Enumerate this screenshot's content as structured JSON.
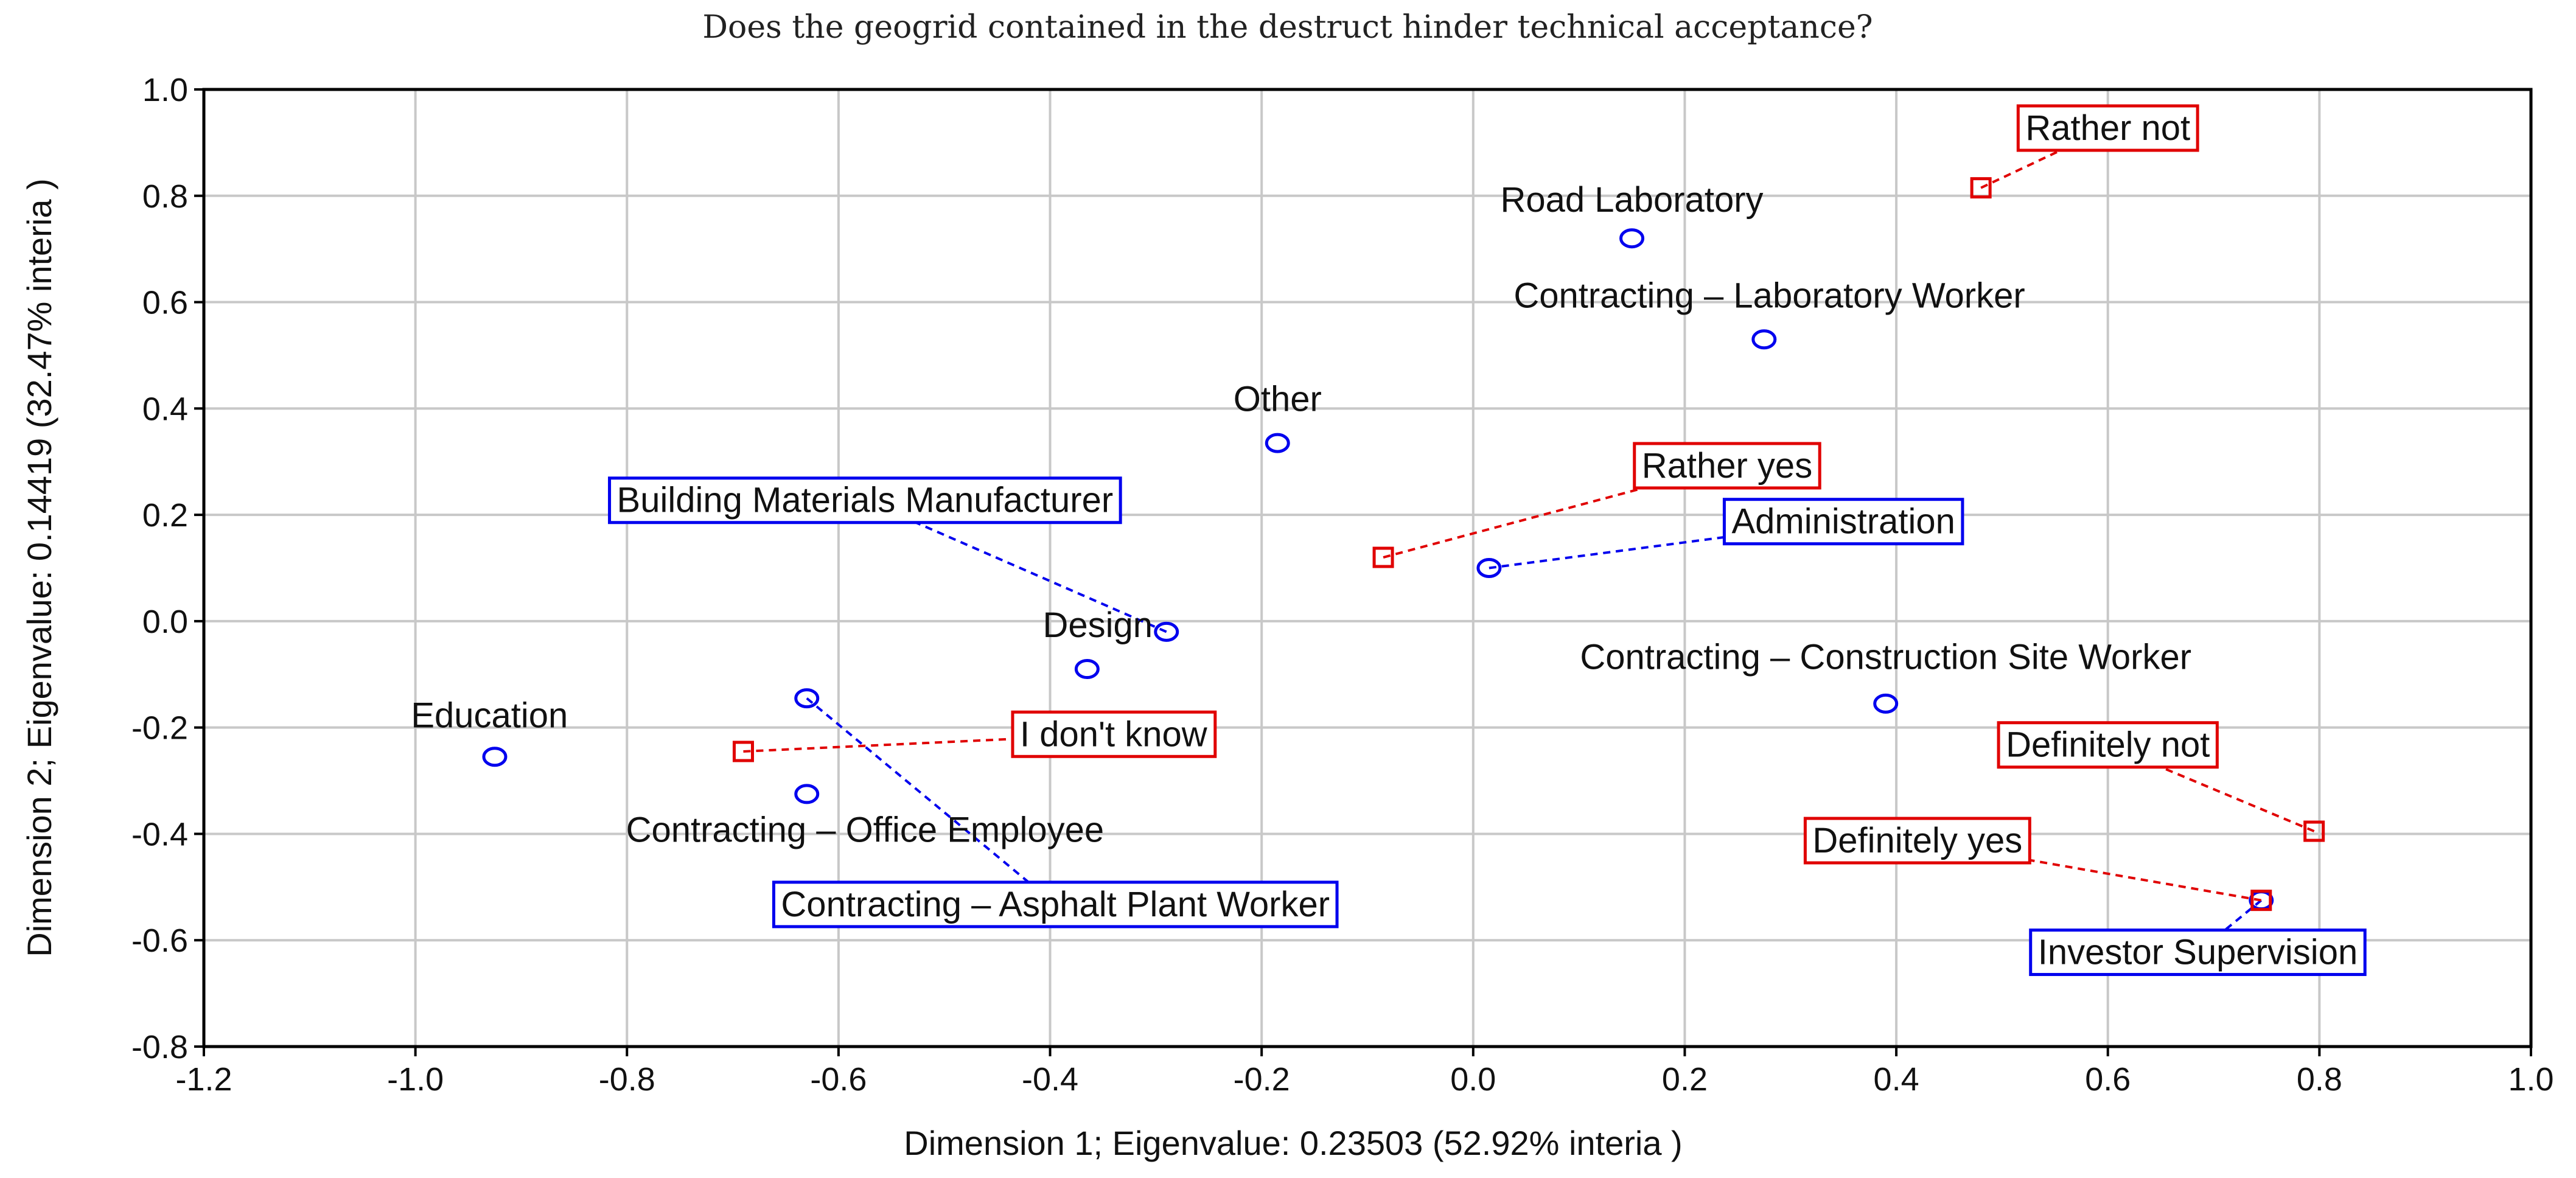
{
  "chart_data": {
    "type": "scatter",
    "title": "Does the geogrid contained in the destruct hinder technical acceptance?",
    "xlabel": "Dimension 1; Eigenvalue:  0.23503 (52.92% interia )",
    "ylabel": "Dimension 2; Eigenvalue:  0.14419 (32.47% interia )",
    "xlim": [
      -1.2,
      1.0
    ],
    "ylim": [
      -0.8,
      1.0
    ],
    "x_ticks": [
      "-1.2",
      "-1.0",
      "-0.8",
      "-0.6",
      "-0.4",
      "-0.2",
      "0.0",
      "0.2",
      "0.4",
      "0.6",
      "0.8",
      "1.0"
    ],
    "y_ticks": [
      "1.0",
      "0.8",
      "0.6",
      "0.4",
      "0.2",
      "0.0",
      "-0.2",
      "-0.4",
      "-0.6",
      "-0.8"
    ],
    "grid": true,
    "colors": {
      "respondent": "#0000ee",
      "answer": "#e00000"
    },
    "points": [
      {
        "label": "Road Laboratory",
        "x": 0.15,
        "y": 0.72,
        "group": "respondent",
        "boxed": false,
        "lx": 0.15,
        "ly": 0.77,
        "anchor": "middle"
      },
      {
        "label": "Contracting – Laboratory Worker",
        "x": 0.275,
        "y": 0.53,
        "group": "respondent",
        "boxed": false,
        "lx": 0.28,
        "ly": 0.59,
        "anchor": "middle"
      },
      {
        "label": "Other",
        "x": -0.185,
        "y": 0.335,
        "group": "respondent",
        "boxed": false,
        "lx": -0.185,
        "ly": 0.395,
        "anchor": "middle"
      },
      {
        "label": "Building Materials Manufacturer",
        "x": -0.29,
        "y": -0.02,
        "group": "respondent",
        "boxed": true,
        "lx": -0.575,
        "ly": 0.205,
        "anchor": "middle"
      },
      {
        "label": "Administration",
        "x": 0.015,
        "y": 0.1,
        "group": "respondent",
        "boxed": true,
        "lx": 0.35,
        "ly": 0.165,
        "anchor": "middle"
      },
      {
        "label": "Design",
        "x": -0.365,
        "y": -0.09,
        "group": "respondent",
        "boxed": false,
        "lx": -0.355,
        "ly": -0.03,
        "anchor": "middle"
      },
      {
        "label": "Contracting – Construction Site Worker",
        "x": 0.39,
        "y": -0.155,
        "group": "respondent",
        "boxed": false,
        "lx": 0.39,
        "ly": -0.09,
        "anchor": "middle"
      },
      {
        "label": "Education",
        "x": -0.925,
        "y": -0.255,
        "group": "respondent",
        "boxed": false,
        "lx": -0.93,
        "ly": -0.2,
        "anchor": "middle"
      },
      {
        "label": "Contracting – Office Employee",
        "x": -0.63,
        "y": -0.325,
        "group": "respondent",
        "boxed": false,
        "lx": -0.575,
        "ly": -0.415,
        "anchor": "middle"
      },
      {
        "label": "Contracting – Asphalt Plant Worker",
        "x": -0.63,
        "y": -0.145,
        "group": "respondent",
        "boxed": true,
        "lx": -0.395,
        "ly": -0.555,
        "anchor": "middle"
      },
      {
        "label": "Investor Supervision",
        "x": 0.745,
        "y": -0.525,
        "group": "respondent",
        "boxed": true,
        "lx": 0.685,
        "ly": -0.645,
        "anchor": "middle"
      },
      {
        "label": "Rather not",
        "x": 0.48,
        "y": 0.815,
        "group": "answer",
        "boxed": true,
        "lx": 0.6,
        "ly": 0.905,
        "anchor": "middle"
      },
      {
        "label": "Rather yes",
        "x": -0.085,
        "y": 0.12,
        "group": "answer",
        "boxed": true,
        "lx": 0.24,
        "ly": 0.27,
        "anchor": "middle"
      },
      {
        "label": "I don't know",
        "x": -0.69,
        "y": -0.245,
        "group": "answer",
        "boxed": true,
        "lx": -0.34,
        "ly": -0.235,
        "anchor": "middle"
      },
      {
        "label": "Definitely not",
        "x": 0.795,
        "y": -0.395,
        "group": "answer",
        "boxed": true,
        "lx": 0.6,
        "ly": -0.255,
        "anchor": "middle"
      },
      {
        "label": "Definitely yes",
        "x": 0.745,
        "y": -0.525,
        "group": "answer",
        "boxed": true,
        "lx": 0.42,
        "ly": -0.435,
        "anchor": "middle"
      }
    ]
  }
}
